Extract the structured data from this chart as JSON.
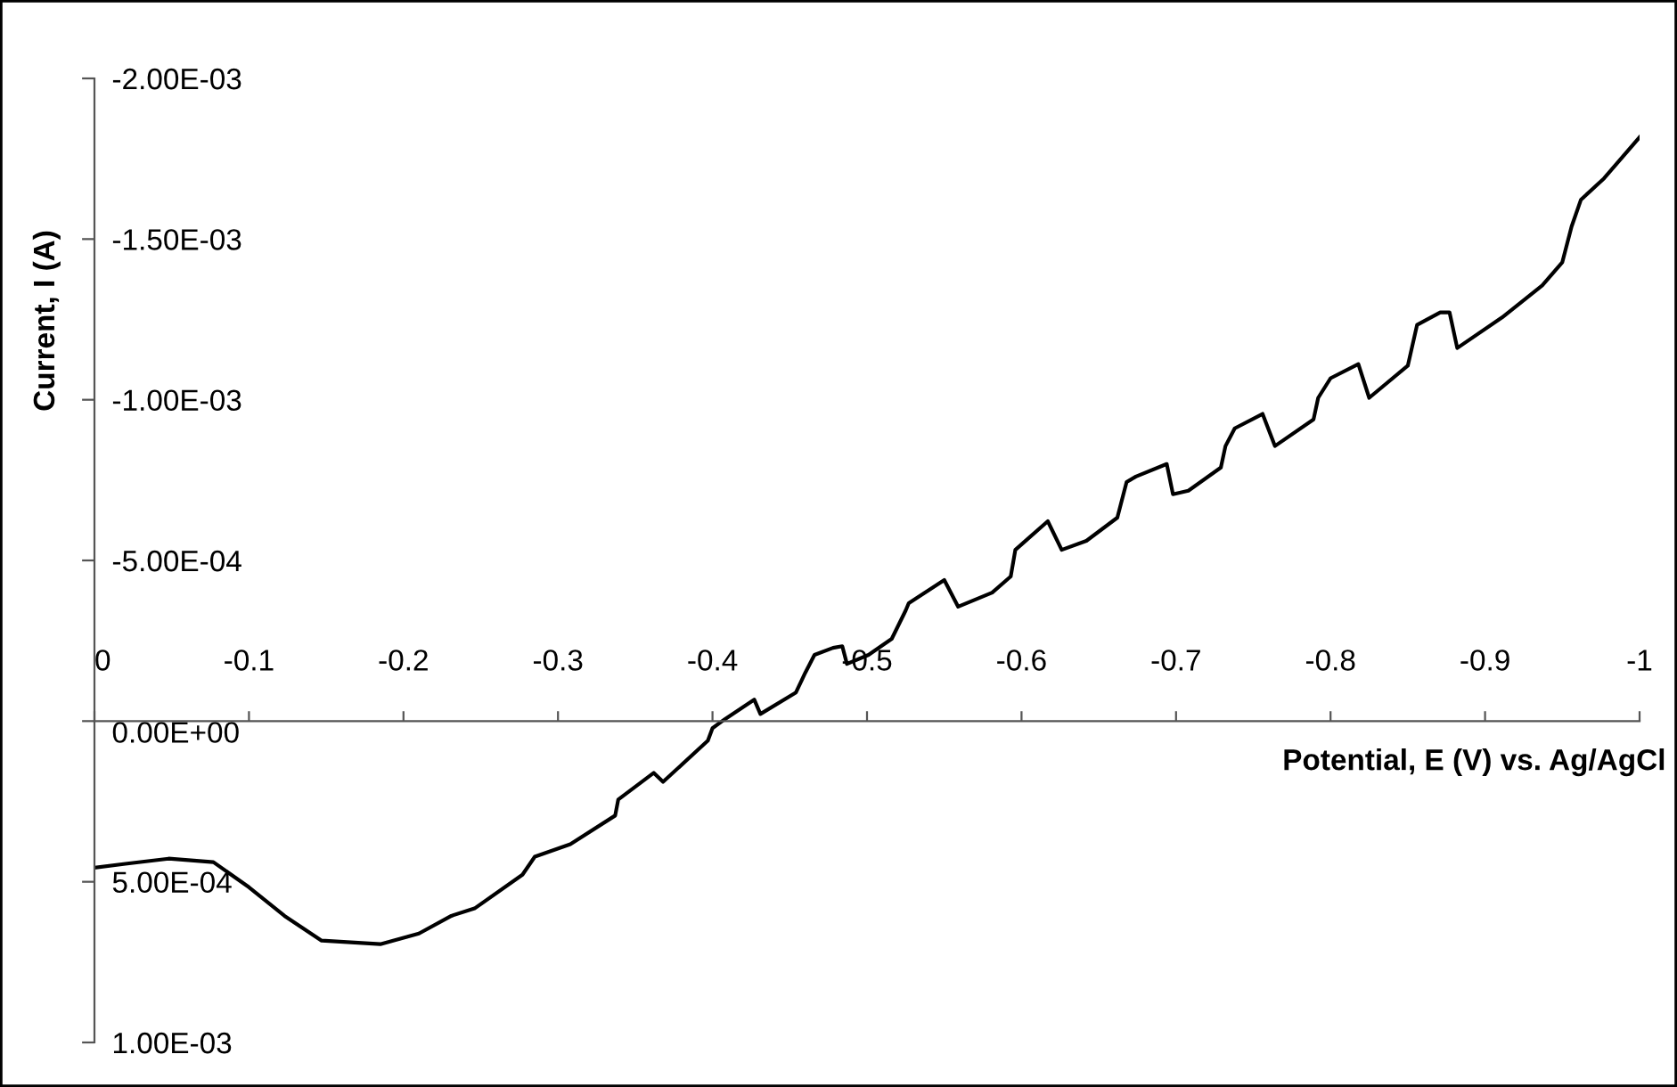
{
  "chart_data": {
    "type": "line",
    "xlabel": "Potential, E (V) vs. Ag/AgCl",
    "ylabel": "Current, I (A)",
    "x": [
      0,
      -0.02,
      -0.048,
      -0.077,
      -0.1,
      -0.123,
      -0.147,
      -0.185,
      -0.21,
      -0.231,
      -0.246,
      -0.277,
      -0.285,
      -0.308,
      -0.337,
      -0.339,
      -0.362,
      -0.368,
      -0.397,
      -0.4,
      -0.408,
      -0.427,
      -0.431,
      -0.454,
      -0.46,
      -0.466,
      -0.478,
      -0.484,
      -0.487,
      -0.501,
      -0.516,
      -0.525,
      -0.527,
      -0.55,
      -0.559,
      -0.581,
      -0.593,
      -0.596,
      -0.604,
      -0.617,
      -0.626,
      -0.642,
      -0.662,
      -0.668,
      -0.674,
      -0.694,
      -0.698,
      -0.708,
      -0.729,
      -0.732,
      -0.738,
      -0.756,
      -0.764,
      -0.789,
      -0.792,
      -0.8,
      -0.818,
      -0.825,
      -0.85,
      -0.856,
      -0.871,
      -0.877,
      -0.882,
      -0.911,
      -0.937,
      -0.95,
      -0.956,
      -0.962,
      -0.977,
      -1.0
    ],
    "series": [
      {
        "color": "#000000",
        "values": [
          0.000456,
          0.000444,
          0.000428,
          0.000439,
          0.000517,
          0.000606,
          0.000683,
          0.000694,
          0.000661,
          0.000606,
          0.000583,
          0.000478,
          0.000422,
          0.000383,
          0.000294,
          0.000244,
          0.000161,
          0.000189,
          6.1e-05,
          2.2e-05,
          -6e-06,
          -6.7e-05,
          -2.2e-05,
          -8.9e-05,
          -0.00015,
          -0.000206,
          -0.000228,
          -0.000233,
          -0.000178,
          -0.000206,
          -0.000256,
          -0.000344,
          -0.000367,
          -0.000439,
          -0.000356,
          -0.0004,
          -0.00045,
          -0.000533,
          -0.000567,
          -0.000622,
          -0.000533,
          -0.000561,
          -0.000633,
          -0.000744,
          -0.000761,
          -0.0008,
          -0.000706,
          -0.000717,
          -0.000789,
          -0.000856,
          -0.000911,
          -0.000956,
          -0.000856,
          -0.000939,
          -0.001006,
          -0.001067,
          -0.001111,
          -0.001006,
          -0.001106,
          -0.001233,
          -0.001272,
          -0.001272,
          -0.001161,
          -0.001256,
          -0.001356,
          -0.001428,
          -0.001539,
          -0.001622,
          -0.001689,
          -0.001817
        ]
      }
    ],
    "xlim": [
      0,
      -1
    ],
    "xticks": [
      0,
      -0.1,
      -0.2,
      -0.3,
      -0.4,
      -0.5,
      -0.6,
      -0.7,
      -0.8,
      -0.9,
      -1
    ],
    "ylim": [
      0.001,
      -0.002
    ],
    "yticks": [
      {
        "value": -0.002,
        "label": "-2.00E-03"
      },
      {
        "value": -0.0015,
        "label": "-1.50E-03"
      },
      {
        "value": -0.001,
        "label": "-1.00E-03"
      },
      {
        "value": -0.0005,
        "label": "-5.00E-04"
      },
      {
        "value": 0,
        "label": "0.00E+00"
      },
      {
        "value": 0.0005,
        "label": "5.00E-04"
      },
      {
        "value": 0.001,
        "label": "1.00E-03"
      }
    ],
    "grid": false,
    "legend": false,
    "marker": "none",
    "line_style": "solid"
  }
}
